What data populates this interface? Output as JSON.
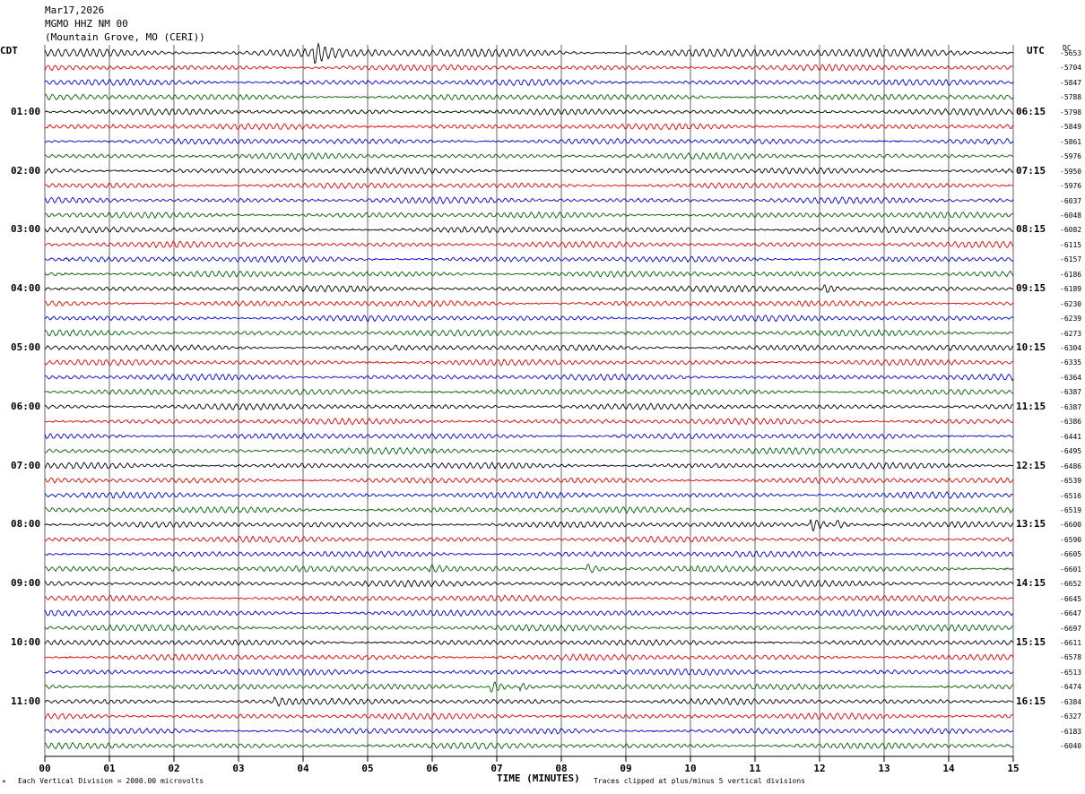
{
  "header": {
    "date": "Mar17,2026",
    "station": "MGMO HHZ NM 00",
    "location": "(Mountain Grove, MO (CERI))"
  },
  "left_zone": "CDT",
  "right_zone": "UTC",
  "dc_label": "DC",
  "footer": {
    "scale_note": "Each Vertical Division = 2000.00 microvolts",
    "xaxis_title": "TIME (MINUTES)",
    "clip_note": "Traces clipped at plus/minus 5 vertical divisions",
    "corner_mark": "*"
  },
  "chart_data": {
    "type": "line",
    "title": "MGMO HHZ NM 00",
    "xlabel": "TIME (MINUTES)",
    "x_ticks": [
      "00",
      "01",
      "02",
      "03",
      "04",
      "05",
      "06",
      "07",
      "08",
      "09",
      "10",
      "11",
      "12",
      "13",
      "14",
      "15"
    ],
    "xlim": [
      0,
      15
    ],
    "trace_colors": [
      "#000000",
      "#e00000",
      "#0000d0",
      "#006000"
    ],
    "left_time_labels": [
      "01:00",
      "02:00",
      "03:00",
      "04:00",
      "05:00",
      "06:00",
      "07:00",
      "08:00",
      "09:00",
      "10:00",
      "11:00"
    ],
    "right_time_labels": [
      "06:15",
      "07:15",
      "08:15",
      "09:15",
      "10:15",
      "11:15",
      "12:15",
      "13:15",
      "14:15",
      "15:15",
      "16:15"
    ],
    "dc_offsets": [
      -5653,
      -5704,
      -5847,
      -5788,
      -5798,
      -5849,
      -5861,
      -5976,
      -5950,
      -5976,
      -6037,
      -6048,
      -6082,
      -6115,
      -6157,
      -6186,
      -6189,
      -6230,
      -6239,
      -6273,
      -6304,
      -6335,
      -6364,
      -6387,
      -6387,
      -6386,
      -6441,
      -6495,
      -6486,
      -6539,
      -6516,
      -6519,
      -6600,
      -6590,
      -6605,
      -6601,
      -6652,
      -6645,
      -6647,
      -6697,
      -6611,
      -6578,
      -6513,
      -6474,
      -6384,
      -6327,
      -6183,
      -6040
    ],
    "events": [
      {
        "trace": 0,
        "minute": 4.2,
        "amp": 1.6
      },
      {
        "trace": 32,
        "minute": 11.9,
        "amp": 2.0
      },
      {
        "trace": 32,
        "minute": 12.3,
        "amp": 1.2
      },
      {
        "trace": 35,
        "minute": 8.45,
        "amp": 1.4
      },
      {
        "trace": 35,
        "minute": 2.0,
        "amp": 0.9
      },
      {
        "trace": 35,
        "minute": 6.0,
        "amp": 0.9
      },
      {
        "trace": 43,
        "minute": 6.95,
        "amp": 1.8
      },
      {
        "trace": 43,
        "minute": 7.4,
        "amp": 1.0
      },
      {
        "trace": 16,
        "minute": 12.1,
        "amp": 1.3
      },
      {
        "trace": 44,
        "minute": 3.6,
        "amp": 0.9
      }
    ]
  }
}
